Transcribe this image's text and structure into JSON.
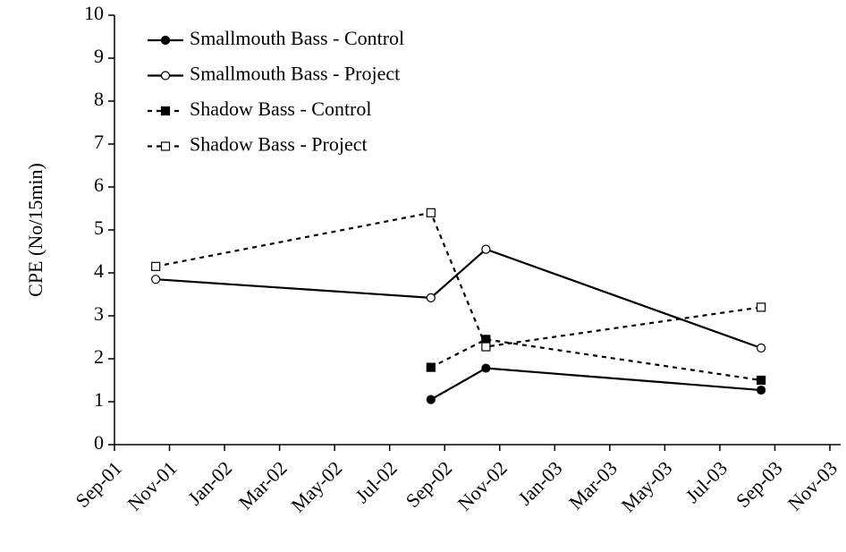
{
  "chart_data": {
    "type": "line",
    "y_label": "CPE (No/15min)",
    "x": [
      "2001-10",
      "2002-08",
      "2002-10",
      "2003-08"
    ],
    "series": [
      {
        "name": "Smallmouth Bass - Control",
        "color": "#000000",
        "marker": "circle",
        "filled": true,
        "dashed": false,
        "values": [
          null,
          1.05,
          1.78,
          1.27
        ]
      },
      {
        "name": "Smallmouth Bass - Project",
        "color": "#000000",
        "marker": "circle",
        "filled": false,
        "dashed": false,
        "values": [
          3.85,
          3.42,
          4.55,
          2.25
        ]
      },
      {
        "name": "Shadow Bass - Control",
        "color": "#000000",
        "marker": "square",
        "filled": true,
        "dashed": true,
        "values": [
          null,
          1.8,
          2.45,
          1.5
        ]
      },
      {
        "name": "Shadow Bass - Project",
        "color": "#000000",
        "marker": "square",
        "filled": false,
        "dashed": true,
        "values": [
          4.15,
          5.4,
          2.28,
          3.2
        ]
      }
    ],
    "xlim": [
      "2001-09",
      "2003-11"
    ],
    "xticks": [
      {
        "value": "2001-09",
        "label": "Sep-01"
      },
      {
        "value": "2001-11",
        "label": "Nov-01"
      },
      {
        "value": "2002-01",
        "label": "Jan-02"
      },
      {
        "value": "2002-03",
        "label": "Mar-02"
      },
      {
        "value": "2002-05",
        "label": "May-02"
      },
      {
        "value": "2002-07",
        "label": "Jul-02"
      },
      {
        "value": "2002-09",
        "label": "Sep-02"
      },
      {
        "value": "2002-11",
        "label": "Nov-02"
      },
      {
        "value": "2003-01",
        "label": "Jan-03"
      },
      {
        "value": "2003-03",
        "label": "Mar-03"
      },
      {
        "value": "2003-05",
        "label": "May-03"
      },
      {
        "value": "2003-07",
        "label": "Jul-03"
      },
      {
        "value": "2003-09",
        "label": "Sep-03"
      },
      {
        "value": "2003-11",
        "label": "Nov-03"
      }
    ],
    "ylim": [
      0,
      10
    ],
    "yticks": [
      0,
      1,
      2,
      3,
      4,
      5,
      6,
      7,
      8,
      9,
      10
    ],
    "legend": "upper left"
  }
}
